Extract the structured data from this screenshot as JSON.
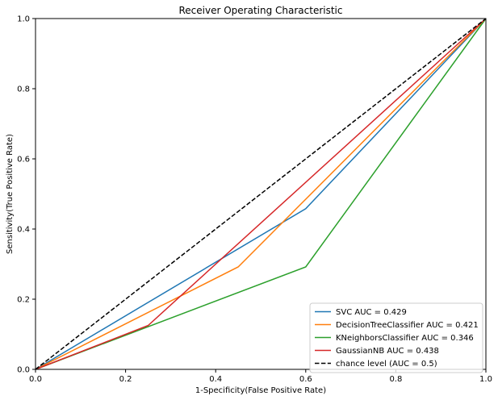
{
  "chart_data": {
    "type": "line",
    "title": "Receiver Operating Characteristic",
    "xlabel": "1-Specificity(False Positive Rate)",
    "ylabel": "Sensitivity(True Positive Rate)",
    "xlim": [
      0,
      1
    ],
    "ylim": [
      0,
      1
    ],
    "xticks": [
      "0.0",
      "0.2",
      "0.4",
      "0.6",
      "0.8",
      "1.0"
    ],
    "yticks": [
      "0.0",
      "0.2",
      "0.4",
      "0.6",
      "0.8",
      "1.0"
    ],
    "grid": false,
    "legend_position": "lower-right",
    "series": [
      {
        "name": "SVC AUC = 0.429",
        "color": "#1f77b4",
        "dash": "solid",
        "x": [
          0,
          0.6,
          1
        ],
        "y": [
          0,
          0.458,
          1
        ]
      },
      {
        "name": "DecisionTreeClassifier AUC = 0.421",
        "color": "#ff7f0e",
        "dash": "solid",
        "x": [
          0,
          0.45,
          1
        ],
        "y": [
          0,
          0.292,
          1
        ]
      },
      {
        "name": "KNeighborsClassifier AUC = 0.346",
        "color": "#2ca02c",
        "dash": "solid",
        "x": [
          0,
          0.6,
          1
        ],
        "y": [
          0,
          0.292,
          1
        ]
      },
      {
        "name": "GaussianNB AUC = 0.438",
        "color": "#d62728",
        "dash": "solid",
        "x": [
          0,
          0.25,
          1
        ],
        "y": [
          0,
          0.125,
          1
        ]
      },
      {
        "name": "chance level (AUC = 0.5)",
        "color": "#000000",
        "dash": "dashed",
        "x": [
          0,
          1
        ],
        "y": [
          0,
          1
        ]
      }
    ]
  }
}
